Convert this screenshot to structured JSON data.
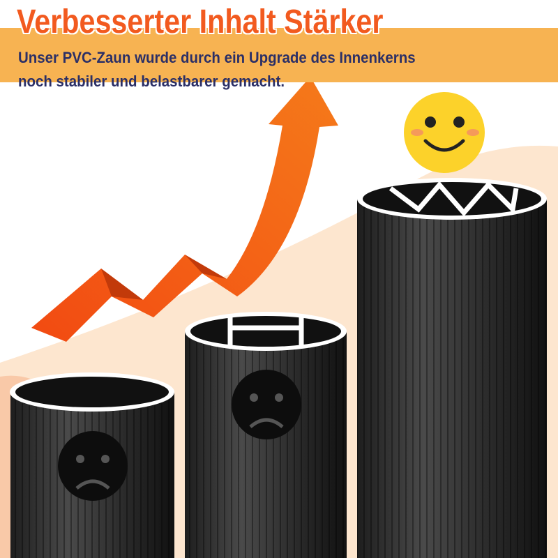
{
  "header": {
    "title": "Verbesserter Inhalt Stärker",
    "subtitle_line1": "Unser PVC-Zaun wurde durch ein Upgrade des Innenkerns",
    "subtitle_line2": "noch stabiler und belastbarer gemacht."
  },
  "colors": {
    "title": "#f25a1f",
    "band": "#f7b352",
    "subtitle": "#2b2f66",
    "arrow": "#f5611a",
    "post": "#3a3a3a",
    "happy_face": "#fcd22a"
  },
  "icons": [
    "sad-face-icon",
    "sad-face-icon",
    "happy-face-icon",
    "upward-arrow-icon"
  ]
}
